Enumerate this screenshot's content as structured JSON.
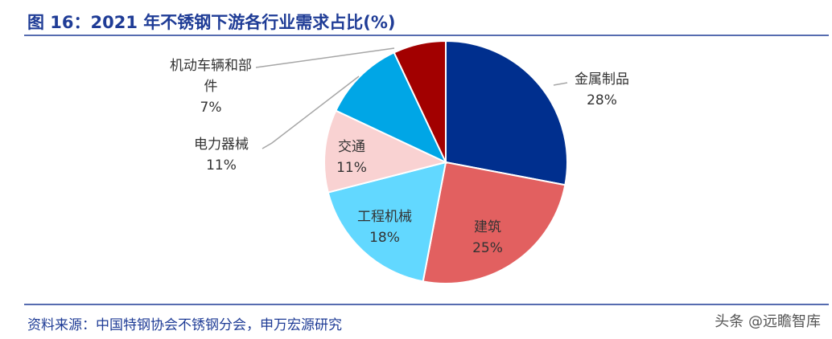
{
  "chart_data": {
    "type": "pie",
    "title": "图 16：2021 年不锈钢下游各行业需求占比(%)",
    "categories": [
      "金属制品",
      "建筑",
      "工程机械",
      "交通",
      "电力器械",
      "机动车辆和部件"
    ],
    "values": [
      28,
      25,
      18,
      11,
      11,
      7
    ],
    "value_labels": [
      "28%",
      "25%",
      "18%",
      "11%",
      "11%",
      "7%"
    ],
    "colors": [
      "#002f8e",
      "#e26060",
      "#62d8ff",
      "#f9d2d2",
      "#00a6e6",
      "#a20000"
    ],
    "source": "资料来源：中国特钢协会不锈钢分会，申万宏源研究",
    "watermark": "头条 @远瞻智库"
  }
}
